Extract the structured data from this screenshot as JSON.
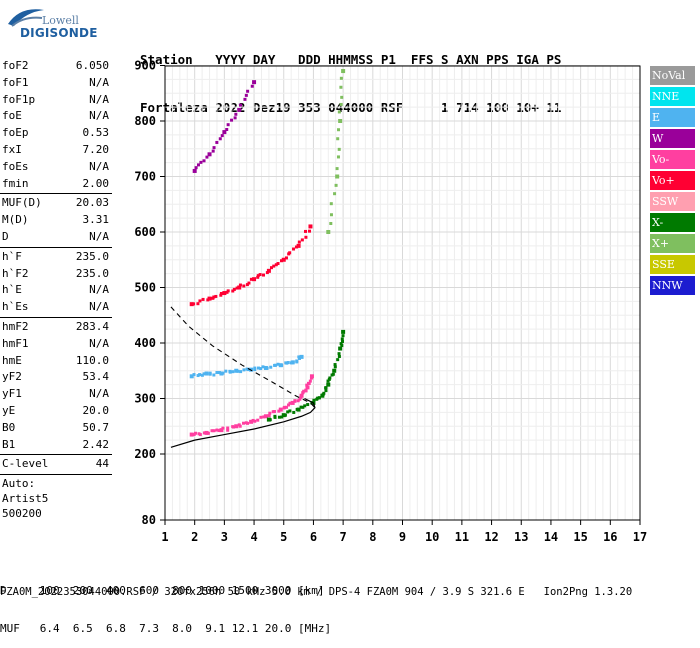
{
  "logo": {
    "line1": "Lowell",
    "line2": "DIGISONDE"
  },
  "header": {
    "line1": "Station   YYYY DAY   DDD HHMMSS P1  FFS S AXN PPS IGA PS",
    "line2": "Fortaleza 2022 Dez19 353 044000 RSF     1 714 100 10+ 11"
  },
  "parameters": {
    "group1": [
      {
        "label": "foF2",
        "value": "6.050"
      },
      {
        "label": "foF1",
        "value": "N/A"
      },
      {
        "label": "foF1p",
        "value": "N/A"
      },
      {
        "label": "foE",
        "value": "N/A"
      },
      {
        "label": "foEp",
        "value": "0.53"
      },
      {
        "label": "fxI",
        "value": "7.20"
      },
      {
        "label": "foEs",
        "value": "N/A"
      },
      {
        "label": "fmin",
        "value": "2.00"
      }
    ],
    "group2": [
      {
        "label": "MUF(D)",
        "value": "20.03"
      },
      {
        "label": "M(D)",
        "value": "3.31"
      },
      {
        "label": "D",
        "value": "N/A"
      }
    ],
    "group3": [
      {
        "label": "h`F",
        "value": "235.0"
      },
      {
        "label": "h`F2",
        "value": "235.0"
      },
      {
        "label": "h`E",
        "value": "N/A"
      },
      {
        "label": "h`Es",
        "value": "N/A"
      }
    ],
    "group4": [
      {
        "label": "hmF2",
        "value": "283.4"
      },
      {
        "label": "hmF1",
        "value": "N/A"
      },
      {
        "label": "hmE",
        "value": "110.0"
      },
      {
        "label": "yF2",
        "value": "53.4"
      },
      {
        "label": "yF1",
        "value": "N/A"
      },
      {
        "label": "yE",
        "value": "20.0"
      },
      {
        "label": "B0",
        "value": "50.7"
      },
      {
        "label": "B1",
        "value": "2.42"
      }
    ],
    "group5": [
      {
        "label": "C-level",
        "value": "44"
      }
    ],
    "autoscale": [
      "Auto:",
      "Artist5",
      "500200"
    ]
  },
  "legend": [
    {
      "label": "NoVal",
      "color": "#9a9a9a"
    },
    {
      "label": "NNE",
      "color": "#00e5ee"
    },
    {
      "label": "E",
      "color": "#4fb3f0"
    },
    {
      "label": "W",
      "color": "#9a009a"
    },
    {
      "label": "Vo-",
      "color": "#ff3fa0"
    },
    {
      "label": "Vo+",
      "color": "#ff0033"
    },
    {
      "label": "SSW",
      "color": "#ff9fb0"
    },
    {
      "label": "X-",
      "color": "#007a00"
    },
    {
      "label": "X+",
      "color": "#7fbf5f"
    },
    {
      "label": "SSE",
      "color": "#c8c800"
    },
    {
      "label": "NNW",
      "color": "#1c1cd0"
    }
  ],
  "footer": {
    "line1": "D     100  200  400  600  800 1000 1500 3000 [km]",
    "line2": "MUF   6.4  6.5  6.8  7.3  8.0  9.1 12.1 20.0 [MHz]",
    "line3": "FZA0M_2022353044000.RSF / 320fx256h 50 kHz 5.0 km / DPS-4 FZA0M 904 / 3.9 S 321.6 E   Ion2Png 1.3.20"
  },
  "chart_data": {
    "type": "scatter",
    "title": "",
    "xlabel": "",
    "ylabel": "",
    "xlim": [
      1,
      17
    ],
    "ylim": [
      80,
      900
    ],
    "x_ticks": [
      1,
      2,
      3,
      4,
      5,
      6,
      7,
      8,
      9,
      10,
      11,
      12,
      13,
      14,
      15,
      16,
      17
    ],
    "y_ticks": [
      80,
      200,
      300,
      400,
      500,
      600,
      700,
      800,
      900
    ],
    "grid": true,
    "series": [
      {
        "name": "Vo-",
        "color": "#ff3fa0",
        "x": [
          1.9,
          2.4,
          2.9,
          3.4,
          3.9,
          4.4,
          4.9,
          5.3,
          5.6,
          5.8,
          5.95
        ],
        "y": [
          235,
          238,
          243,
          250,
          258,
          268,
          280,
          292,
          305,
          320,
          340
        ]
      },
      {
        "name": "X-",
        "color": "#007a00",
        "x": [
          4.5,
          5.0,
          5.5,
          6.0,
          6.3,
          6.5,
          6.7,
          6.9,
          7.0
        ],
        "y": [
          262,
          270,
          280,
          292,
          305,
          325,
          350,
          390,
          420
        ]
      },
      {
        "name": "E",
        "color": "#4fb3f0",
        "x": [
          1.9,
          2.4,
          2.9,
          3.4,
          3.9,
          4.4,
          4.9,
          5.3,
          5.6
        ],
        "y": [
          340,
          345,
          345,
          350,
          352,
          355,
          360,
          365,
          375
        ]
      },
      {
        "name": "Vo+",
        "color": "#ff0033",
        "x": [
          1.9,
          2.5,
          3.0,
          3.5,
          4.0,
          4.5,
          5.0,
          5.5,
          5.9
        ],
        "y": [
          470,
          480,
          490,
          500,
          515,
          530,
          550,
          575,
          610
        ]
      },
      {
        "name": "X+",
        "color": "#7fbf5f",
        "x": [
          6.5,
          6.8,
          6.9,
          7.0
        ],
        "y": [
          600,
          700,
          800,
          890
        ]
      },
      {
        "name": "W",
        "color": "#9a009a",
        "x": [
          2.0,
          2.5,
          3.0,
          3.5,
          4.0
        ],
        "y": [
          710,
          740,
          780,
          820,
          870
        ]
      }
    ],
    "profile_solid": {
      "x": [
        1.2,
        2.0,
        3.0,
        4.0,
        5.0,
        5.6,
        5.9,
        6.05,
        6.0,
        5.7
      ],
      "y": [
        212,
        225,
        235,
        245,
        258,
        268,
        275,
        283.4,
        292,
        300
      ]
    },
    "profile_dashed": {
      "x": [
        1.2,
        1.8,
        2.6,
        3.6,
        4.6,
        5.4,
        5.9,
        6.05
      ],
      "y": [
        465,
        430,
        395,
        360,
        330,
        305,
        292,
        283.4
      ]
    }
  }
}
